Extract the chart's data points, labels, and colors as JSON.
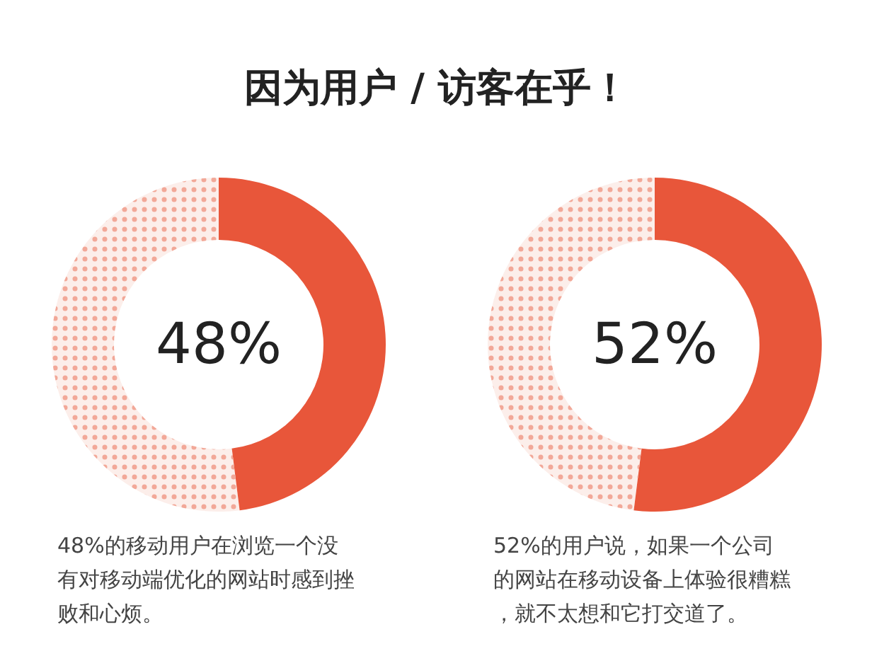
{
  "chart_data": [
    {
      "type": "donut",
      "title": "因为用户 / 访客在乎！",
      "categories": [
        null,
        null
      ],
      "values": [
        48,
        52
      ],
      "colors": [
        "#e8563a",
        "#f2a898"
      ],
      "annotations": [
        "48%",
        "48%的移动用户在浏览一个没有对移动端优化的网站时感到挫败和心烦。"
      ]
    },
    {
      "type": "donut",
      "categories": [
        null,
        null
      ],
      "values": [
        52,
        48
      ],
      "colors": [
        "#e8563a",
        "#f2a898"
      ],
      "annotations": [
        "52%",
        "52%的用户说，如果一个公司的网站在移动设备上体验很糟糕，就不太想和它打交道了。"
      ]
    }
  ]
}
